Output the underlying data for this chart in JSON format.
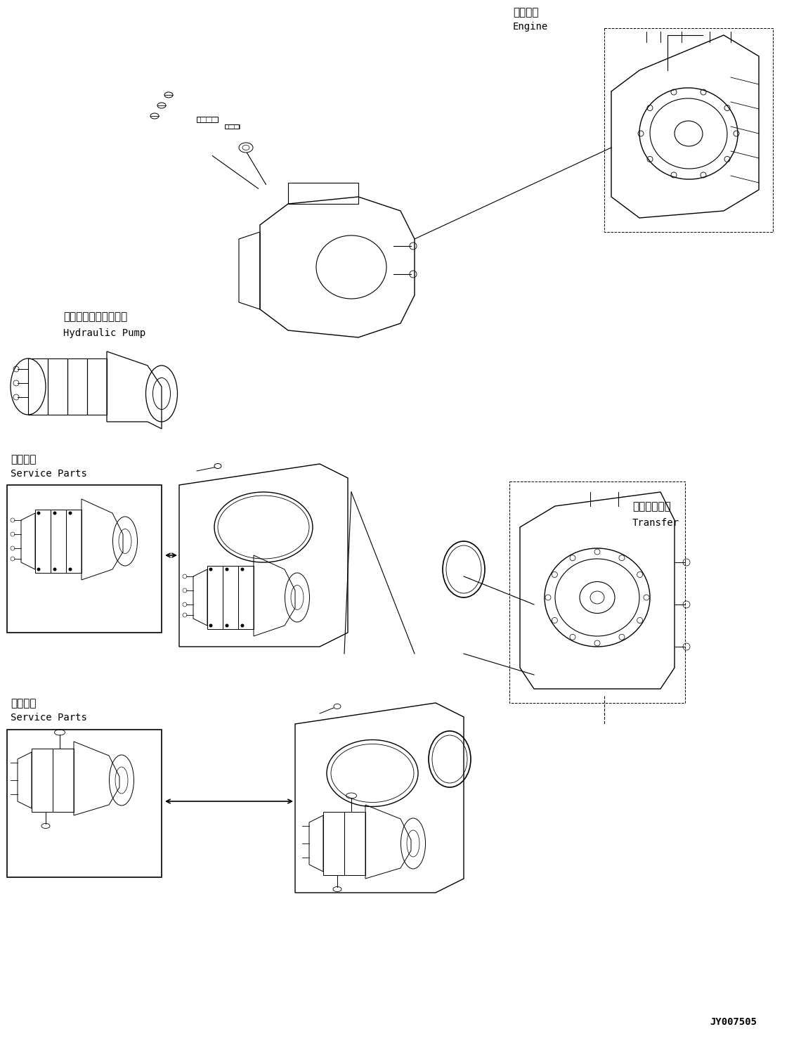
{
  "background_color": "#ffffff",
  "figure_width": 11.4,
  "figure_height": 14.81,
  "dpi": 100,
  "labels": {
    "engine_jp": "エンジン",
    "engine_en": "Engine",
    "hydraulic_pump_jp": "ハイドロリックポンプ",
    "hydraulic_pump_en": "Hydraulic Pump",
    "service_parts_jp_1": "補給専用",
    "service_parts_en_1": "Service Parts",
    "service_parts_jp_2": "補給専用",
    "service_parts_en_2": "Service Parts",
    "transfer_jp": "トランスファ",
    "transfer_en": "Transfer",
    "part_number": "JY007505"
  },
  "font_sizes": {
    "label_jp": 11,
    "label_en": 10,
    "part_number": 10
  },
  "colors": {
    "lines": "#000000",
    "background": "#ffffff",
    "box_outline": "#000000"
  }
}
